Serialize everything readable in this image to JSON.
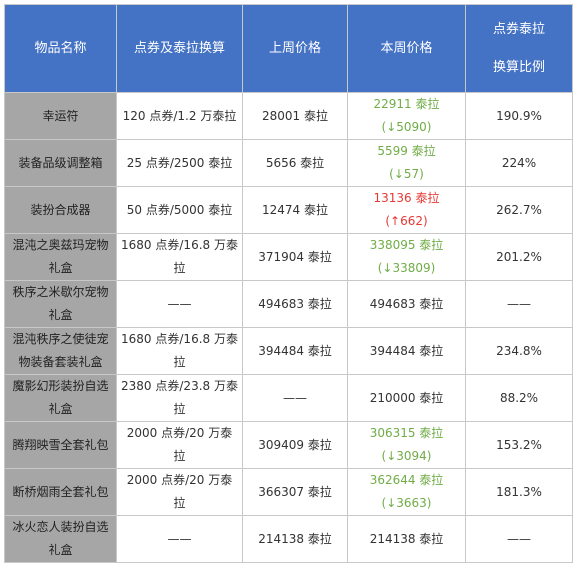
{
  "headers": {
    "item": "物品名称",
    "conversion": "点券及泰拉换算",
    "last_week": "上周价格",
    "this_week": "本周价格",
    "ratio_line1": "点券泰拉",
    "ratio_line2": "换算比例"
  },
  "colors": {
    "header_bg": "#4472c4",
    "name_col_bg": "#a6a6a6",
    "price_down": "#70ad47",
    "price_up": "#e53935"
  },
  "rows": [
    {
      "name1": "幸运符",
      "name2": "",
      "conv1": "120 点券/1.2 万泰拉",
      "conv2": "",
      "last": "28001 泰拉",
      "now1": "22911 泰拉",
      "now2": "(↓5090)",
      "trend": "down",
      "ratio": "190.9%"
    },
    {
      "name1": "装备品级调整箱",
      "name2": "",
      "conv1": "25 点券/2500 泰拉",
      "conv2": "",
      "last": "5656 泰拉",
      "now1": "5599 泰拉",
      "now2": "(↓57)",
      "trend": "down",
      "ratio": "224%"
    },
    {
      "name1": "装扮合成器",
      "name2": "",
      "conv1": "50 点券/5000 泰拉",
      "conv2": "",
      "last": "12474 泰拉",
      "now1": "13136 泰拉",
      "now2": "(↑662)",
      "trend": "up",
      "ratio": "262.7%"
    },
    {
      "name1": "混沌之奥兹玛宠物",
      "name2": "礼盒",
      "conv1": "1680 点券/16.8 万泰",
      "conv2": "拉",
      "last": "371904 泰拉",
      "now1": "338095 泰拉",
      "now2": "(↓33809)",
      "trend": "down",
      "ratio": "201.2%"
    },
    {
      "name1": "秩序之米歇尔宠物",
      "name2": "礼盒",
      "conv1": "——",
      "conv2": "",
      "last": "494683 泰拉",
      "now1": "494683 泰拉",
      "now2": "",
      "trend": "same",
      "ratio": "——"
    },
    {
      "name1": "混沌秩序之使徒宠",
      "name2": "物装备套装礼盒",
      "conv1": "1680 点券/16.8 万泰",
      "conv2": "拉",
      "last": "394484 泰拉",
      "now1": "394484 泰拉",
      "now2": "",
      "trend": "same",
      "ratio": "234.8%"
    },
    {
      "name1": "魔影幻形装扮自选",
      "name2": "礼盒",
      "conv1": "2380 点券/23.8 万泰",
      "conv2": "拉",
      "last": "——",
      "now1": "210000 泰拉",
      "now2": "",
      "trend": "same",
      "ratio": "88.2%"
    },
    {
      "name1": "腾翔映雪全套礼包",
      "name2": "",
      "conv1": "2000 点券/20 万泰",
      "conv2": "拉",
      "last": "309409 泰拉",
      "now1": "306315 泰拉",
      "now2": "(↓3094)",
      "trend": "down",
      "ratio": "153.2%"
    },
    {
      "name1": "断桥烟雨全套礼包",
      "name2": "",
      "conv1": "2000 点券/20 万泰",
      "conv2": "拉",
      "last": "366307 泰拉",
      "now1": "362644 泰拉",
      "now2": "(↓3663)",
      "trend": "down",
      "ratio": "181.3%"
    },
    {
      "name1": "冰火恋人装扮自选",
      "name2": "礼盒",
      "conv1": "——",
      "conv2": "",
      "last": "214138 泰拉",
      "now1": "214138 泰拉",
      "now2": "",
      "trend": "same",
      "ratio": "——"
    }
  ]
}
